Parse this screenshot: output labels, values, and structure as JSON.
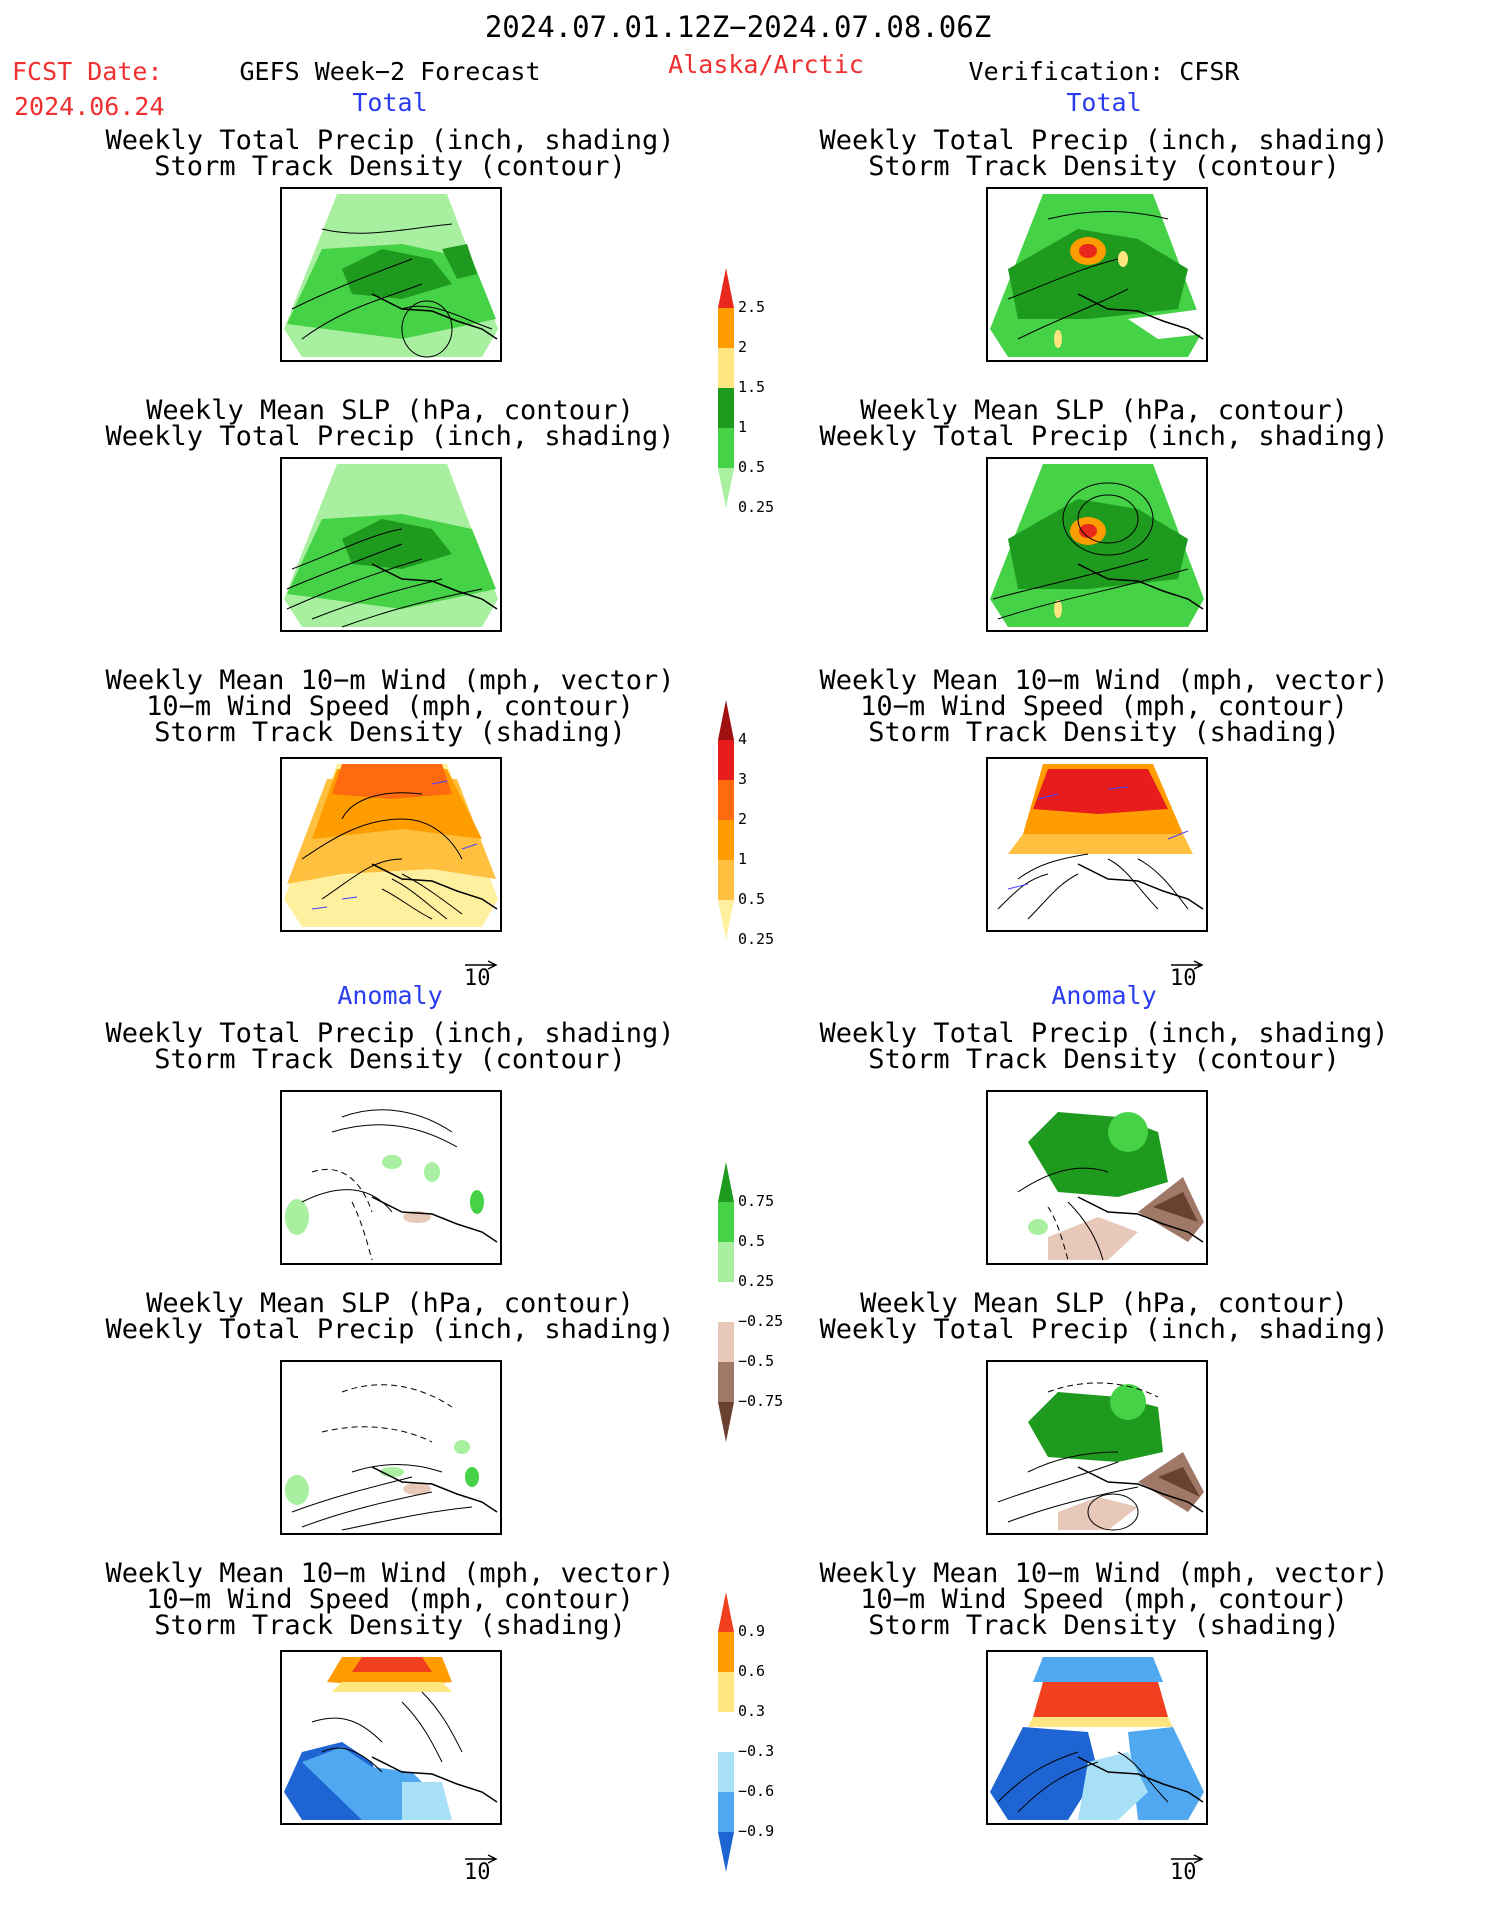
{
  "header": {
    "date_range": "2024.07.01.12Z−2024.07.08.06Z",
    "fcst_label": "FCST Date:",
    "fcst_date": "2024.06.24",
    "model": "GEFS Week−2 Forecast",
    "region": "Alaska/Arctic",
    "verification": "Verification: CFSR"
  },
  "sections": {
    "total": "Total",
    "anomaly": "Anomaly"
  },
  "titles": {
    "precip_track": [
      "Weekly Total Precip (inch, shading)",
      "Storm Track Density (contour)"
    ],
    "slp_precip": [
      "Weekly Mean SLP (hPa, contour)",
      "Weekly Total Precip (inch, shading)"
    ],
    "wind": [
      "Weekly Mean 10−m Wind (mph, vector)",
      "10−m Wind Speed (mph, contour)",
      "Storm Track Density (shading)"
    ]
  },
  "reference_vector": "10",
  "colorbars": [
    {
      "name": "precip-total",
      "labels": [
        "2.5",
        "2",
        "1.5",
        "1",
        "0.5",
        "0.25"
      ],
      "colors": [
        "#e8281c",
        "#ff9c00",
        "#ffe680",
        "#1e9a1e",
        "#46d246",
        "#a8f0a0"
      ]
    },
    {
      "name": "track-total",
      "labels": [
        "4",
        "3",
        "2",
        "1",
        "0.5",
        "0.25"
      ],
      "colors": [
        "#a01010",
        "#e81c1c",
        "#ff6a10",
        "#ff9c00",
        "#ffc040",
        "#fff0a0"
      ]
    },
    {
      "name": "precip-anomaly",
      "labels": [
        "0.75",
        "0.5",
        "0.25",
        "−0.25",
        "−0.5",
        "−0.75"
      ],
      "colors": [
        "#1e9a1e",
        "#46d246",
        "#a8f0a0",
        "#ffffff",
        "#e8c8b8",
        "#a07868",
        "#6a4030"
      ]
    },
    {
      "name": "track-anomaly",
      "labels": [
        "0.9",
        "0.6",
        "0.3",
        "−0.3",
        "−0.6",
        "−0.9"
      ],
      "colors": [
        "#f04020",
        "#ff9c00",
        "#ffe680",
        "#ffffff",
        "#a8e0f8",
        "#50a8f0",
        "#1e64d2"
      ]
    }
  ]
}
